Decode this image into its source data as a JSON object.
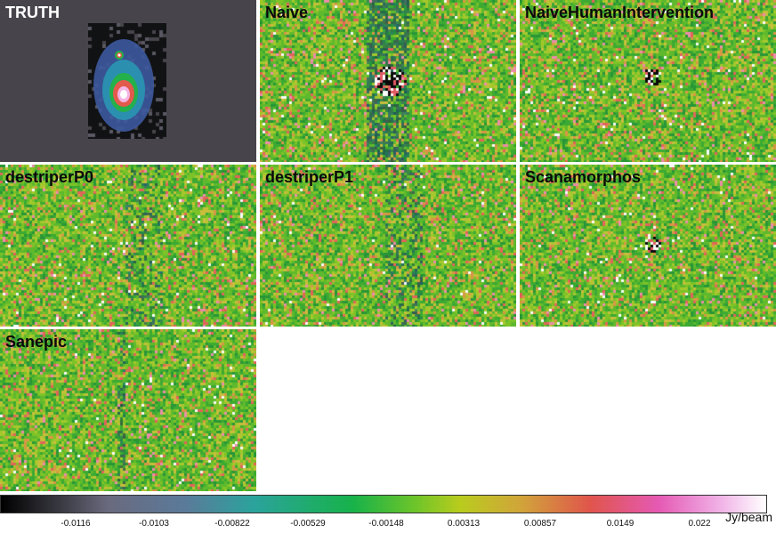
{
  "panels": [
    {
      "label": "TRUTH",
      "kind": "truth"
    },
    {
      "label": "Naive",
      "kind": "naive"
    },
    {
      "label": "NaiveHumanIntervention",
      "kind": "nhi"
    },
    {
      "label": "destriperP0",
      "kind": "dp0"
    },
    {
      "label": "destriperP1",
      "kind": "dp1"
    },
    {
      "label": "Scanamorphos",
      "kind": "scan"
    },
    {
      "label": "Sanepic",
      "kind": "sane"
    }
  ],
  "colorbar": {
    "ticks": [
      "-0.0116",
      "-0.0103",
      "-0.00822",
      "-0.00529",
      "-0.00148",
      "0.00313",
      "0.00857",
      "0.0149",
      "0.022"
    ],
    "unit": "Jy/beam"
  },
  "caption": "",
  "colors": {
    "map_green": "#6fb43a",
    "truth_background": "#47454b"
  }
}
